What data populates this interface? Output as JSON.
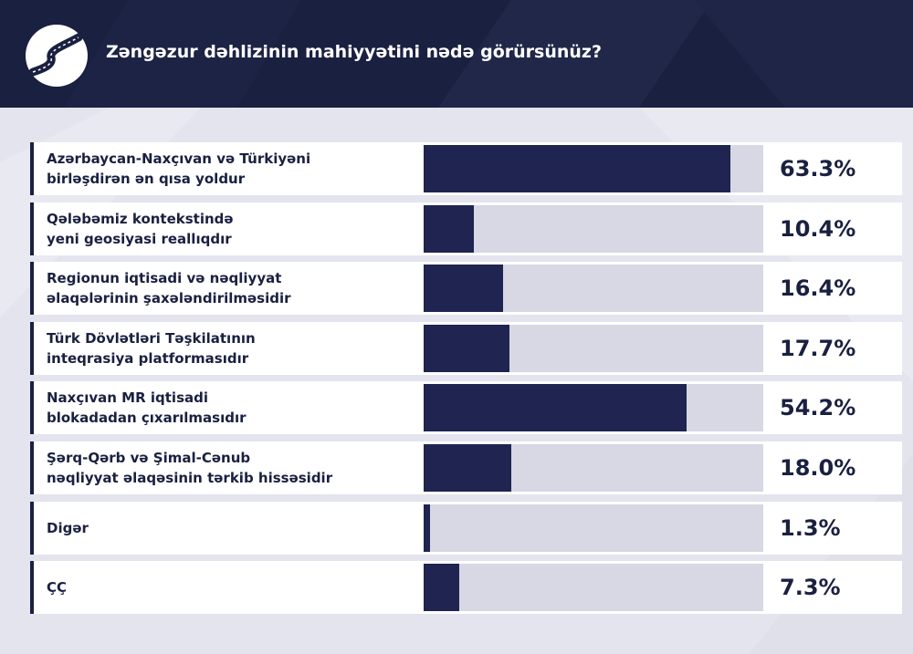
{
  "header": {
    "title": "Zəngəzur dəhlizinin mahiyyətini nədə görürsünüz?",
    "logo_icon": "winding-road-icon"
  },
  "colors": {
    "header_bg": "#1a2040",
    "bar_fill": "#1f2550",
    "bar_track": "#d7d8e4",
    "page_bg": "#e3e4ee"
  },
  "chart_data": {
    "type": "bar",
    "orientation": "horizontal",
    "title": "Zəngəzur dəhlizinin mahiyyətini nədə görürsünüz?",
    "xlim": [
      0,
      70
    ],
    "grid": false,
    "categories": [
      [
        "Azərbaycan-Naxçıvan və Türkiyəni",
        "birləşdirən ən qısa yoldur"
      ],
      [
        "Qələbəmiz kontekstində",
        "yeni geosiyasi reallıqdır"
      ],
      [
        "Regionun iqtisadi və nəqliyyat",
        "əlaqələrinin şaxələndirilməsidir"
      ],
      [
        "Türk Dövlətləri Təşkilatının",
        "inteqrasiya platformasıdır"
      ],
      [
        "Naxçıvan MR iqtisadi",
        "blokadadan çıxarılmasıdır"
      ],
      [
        "Şərq-Qərb və Şimal-Cənub",
        "nəqliyyat əlaqəsinin tərkib hissəsidir"
      ],
      [
        "Digər"
      ],
      [
        "ÇÇ"
      ]
    ],
    "values": [
      63.3,
      10.4,
      16.4,
      17.7,
      54.2,
      18.0,
      1.3,
      7.3
    ],
    "value_labels": [
      "63.3%",
      "10.4%",
      "16.4%",
      "17.7%",
      "54.2%",
      "18.0%",
      "1.3%",
      "7.3%"
    ]
  }
}
